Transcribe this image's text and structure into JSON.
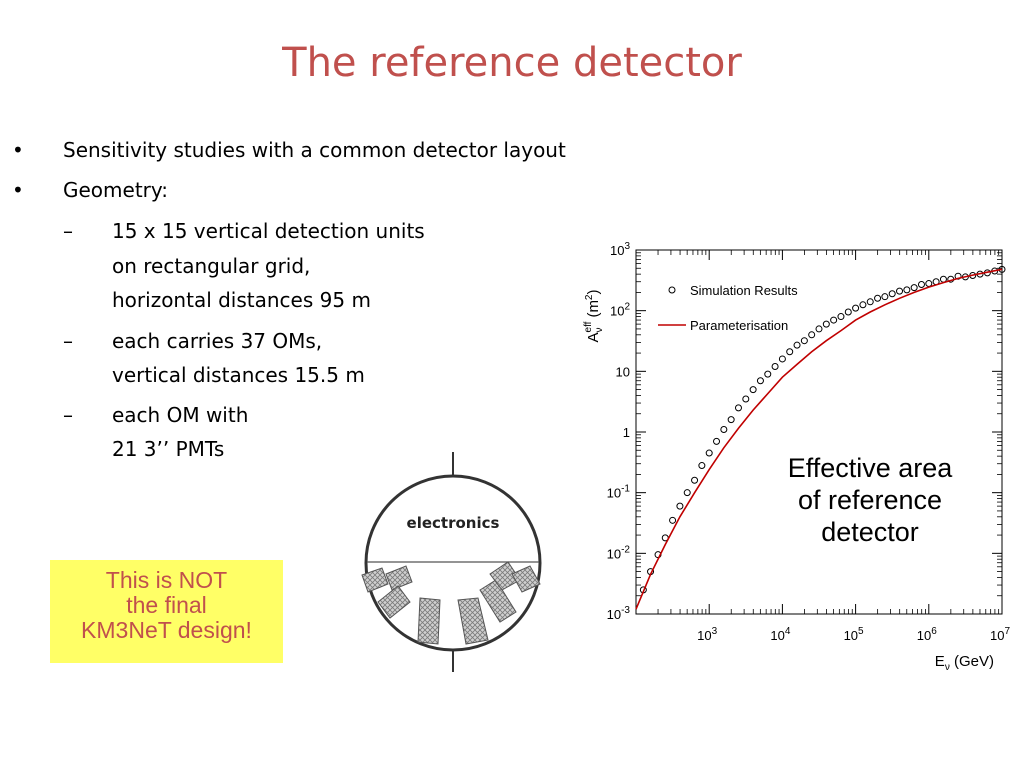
{
  "slide": {
    "title": "The reference detector"
  },
  "bullets": [
    {
      "marker": "•",
      "text": "Sensitivity studies with a common detector layout"
    },
    {
      "marker": "•",
      "text": "Geometry:"
    }
  ],
  "sub_bullets": [
    {
      "marker": "–",
      "lines": [
        "15 x 15 vertical detection units",
        "on rectangular grid,",
        "horizontal distances 95 m"
      ]
    },
    {
      "marker": "–",
      "lines": [
        "each carries 37 OMs,",
        "vertical distances 15.5 m"
      ]
    },
    {
      "marker": "–",
      "lines": [
        "each OM with",
        "21 3’’ PMTs"
      ]
    }
  ],
  "note_box": {
    "lines": [
      "This is NOT",
      "the final",
      "KM3NeT design!"
    ],
    "background": "#ffff66",
    "text_color": "#c0504d"
  },
  "diagram": {
    "label": "electronics"
  },
  "caption": {
    "lines": [
      "Effective area",
      "of reference",
      "detector"
    ]
  },
  "chart_data": {
    "type": "scatter",
    "log_x": true,
    "log_y": true,
    "xlim": [
      100,
      10000000
    ],
    "ylim": [
      0.001,
      1000
    ],
    "x_tick_exponents": [
      3,
      4,
      5,
      6,
      7
    ],
    "y_tick_labels": [
      "10^-3",
      "10^-2",
      "10^-1",
      "1",
      "10",
      "10^2",
      "10^3"
    ],
    "xlabel": "Eν (GeV)",
    "ylabel": "Aν eff (m2)",
    "legend": {
      "placement": "top-left",
      "entries": [
        "Simulation Results",
        "Parameterisation"
      ]
    },
    "series": [
      {
        "name": "Simulation Results",
        "marker": "open-circle",
        "color": "#000000",
        "x": [
          126,
          158,
          200,
          251,
          316,
          398,
          501,
          631,
          794,
          1000,
          1259,
          1585,
          1995,
          2512,
          3162,
          3981,
          5012,
          6310,
          7943,
          10000,
          12589,
          15849,
          19953,
          25119,
          31623,
          39811,
          50119,
          63096,
          79433,
          100000,
          125893,
          158489,
          199526,
          251189,
          316228,
          398107,
          501187,
          630957,
          794328,
          1000000,
          1258925,
          1584893,
          1995262,
          2511886,
          3162278,
          3981072,
          5011872,
          6309573,
          7943282,
          10000000
        ],
        "y": [
          0.0025,
          0.005,
          0.0095,
          0.018,
          0.035,
          0.06,
          0.1,
          0.16,
          0.28,
          0.45,
          0.7,
          1.1,
          1.6,
          2.5,
          3.5,
          5,
          7,
          9,
          12,
          16,
          21,
          27,
          32,
          40,
          50,
          60,
          70,
          80,
          95,
          110,
          125,
          140,
          160,
          170,
          190,
          210,
          220,
          240,
          270,
          280,
          300,
          330,
          330,
          370,
          360,
          380,
          400,
          420,
          450,
          480
        ]
      },
      {
        "name": "Parameterisation",
        "marker": "line",
        "color": "#c00000",
        "x": [
          100,
          158,
          251,
          398,
          631,
          1000,
          1585,
          2512,
          3981,
          6310,
          10000,
          15849,
          25119,
          39811,
          63096,
          100000,
          158489,
          251189,
          398107,
          630957,
          1000000,
          1584893,
          2511886,
          3981072,
          6309573,
          10000000
        ],
        "y": [
          0.0012,
          0.0045,
          0.014,
          0.04,
          0.1,
          0.24,
          0.55,
          1.15,
          2.3,
          4.3,
          8,
          13,
          21,
          32,
          47,
          70,
          95,
          125,
          160,
          200,
          245,
          290,
          340,
          385,
          430,
          480
        ]
      }
    ]
  }
}
